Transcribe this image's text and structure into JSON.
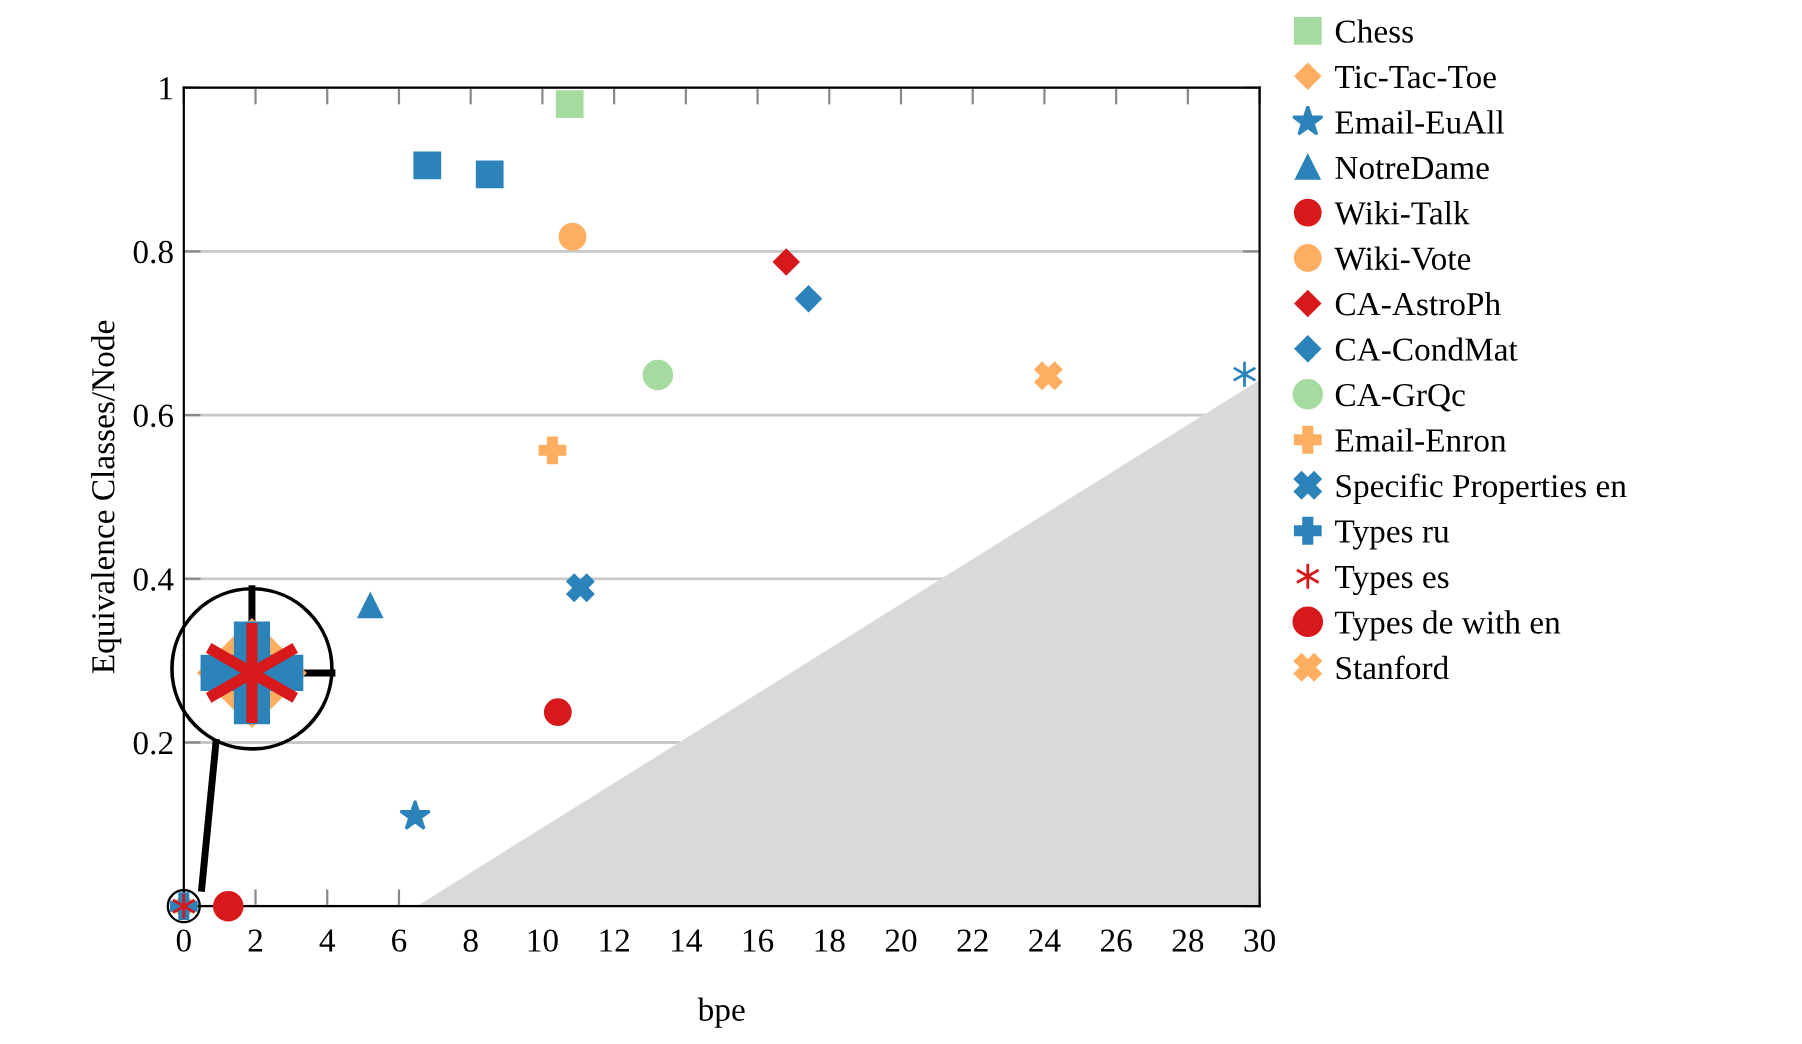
{
  "chart_data": {
    "type": "scatter",
    "xlabel": "bpe",
    "ylabel": "Equivalence Classes/Node",
    "xlim": [
      0,
      30
    ],
    "xticks": [
      0,
      2,
      4,
      6,
      8,
      10,
      12,
      14,
      16,
      18,
      20,
      22,
      24,
      26,
      28,
      30
    ],
    "ylim": [
      0,
      1
    ],
    "yticks": [
      {
        "value": 0,
        "label": null
      },
      0.2,
      0.4,
      0.6,
      0.8,
      1
    ],
    "grid": "y",
    "legend": "right",
    "series": [
      {
        "type": "area",
        "color": "#d9d9d9",
        "x": [
          6.5,
          30
        ],
        "values": [
          0,
          0.643
        ]
      },
      {
        "name": "Chess",
        "color": "#a6dba0",
        "marker": "square",
        "x": [
          10.76
        ],
        "values": [
          0.98
        ]
      },
      {
        "name": "Tic-Tac-Toe",
        "color": "#fdae61",
        "marker": "diamond",
        "x": [
          0
        ],
        "values": [
          0
        ]
      },
      {
        "name": "Email-EuAll",
        "color": "#2b83ba",
        "marker": "star",
        "x": [
          6.45
        ],
        "values": [
          0.11
        ]
      },
      {
        "name": "NotreDame",
        "color": "#2b83ba",
        "marker": "triangle",
        "x": [
          5.2
        ],
        "values": [
          0.367
        ]
      },
      {
        "name": "Wiki-Talk",
        "color": "#d7191c",
        "marker": "circle",
        "x": [
          10.43
        ],
        "values": [
          0.237
        ]
      },
      {
        "name": "Wiki-Vote",
        "color": "#fdae61",
        "marker": "circle",
        "x": [
          10.84
        ],
        "values": [
          0.818
        ]
      },
      {
        "name": "CA-AstroPh",
        "color": "#d7191c",
        "marker": "diamond",
        "x": [
          16.8
        ],
        "values": [
          0.787
        ]
      },
      {
        "name": "CA-CondMat",
        "color": "#2b83ba",
        "marker": "diamond",
        "x": [
          17.42
        ],
        "values": [
          0.742
        ]
      },
      {
        "name": "CA-GrQc",
        "color": "#a6dba0",
        "marker": "circle",
        "x": [
          13.22
        ],
        "values": [
          0.649
        ]
      },
      {
        "name": "Email-Enron",
        "color": "#fdae61",
        "marker": "plus",
        "x": [
          10.28
        ],
        "values": [
          0.557
        ]
      },
      {
        "name": "Specific Properties en",
        "color": "#2b83ba",
        "marker": "x",
        "x": [
          11.06
        ],
        "values": [
          0.389
        ]
      },
      {
        "name": "Types ru",
        "color": "#2b83ba",
        "marker": "plus",
        "x": [
          0
        ],
        "values": [
          0
        ]
      },
      {
        "name": "Types es",
        "color": "#d7191c",
        "marker": "cross",
        "x": [
          0
        ],
        "values": [
          0
        ]
      },
      {
        "name": "Types de with en",
        "color": "#d7191c",
        "marker": "circle",
        "x": [
          1.24
        ],
        "values": [
          0
        ]
      },
      {
        "color": "#2b83ba",
        "marker": "square",
        "x": [
          8.53
        ],
        "values": [
          0.894
        ]
      },
      {
        "color": "#2b83ba",
        "marker": "square",
        "x": [
          6.79
        ],
        "values": [
          0.905
        ]
      },
      {
        "color": "#2b83ba",
        "marker": "cross",
        "x": [
          29.58
        ],
        "values": [
          0.65
        ]
      },
      {
        "name": "Stanford",
        "color": "#fdae61",
        "marker": "x",
        "x": [
          24.11
        ],
        "values": [
          0.648
        ]
      }
    ]
  }
}
